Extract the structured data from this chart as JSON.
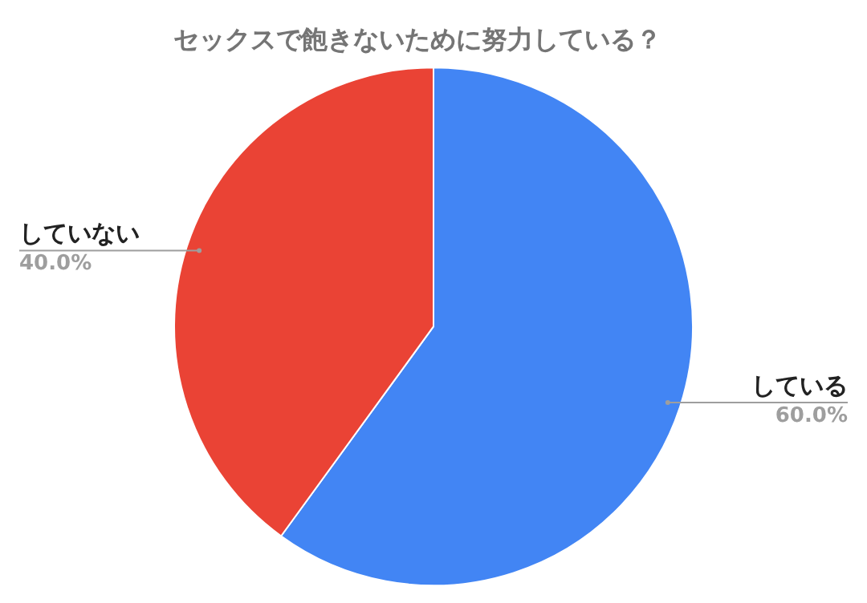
{
  "chart_data": {
    "type": "pie",
    "title": "セックスで飽きないために努力している？",
    "categories": [
      "している",
      "していない"
    ],
    "values": [
      60,
      40
    ],
    "value_labels": [
      "60.0%",
      "40.0%"
    ],
    "colors": [
      "#4285f4",
      "#ea4335"
    ],
    "legend": false
  }
}
